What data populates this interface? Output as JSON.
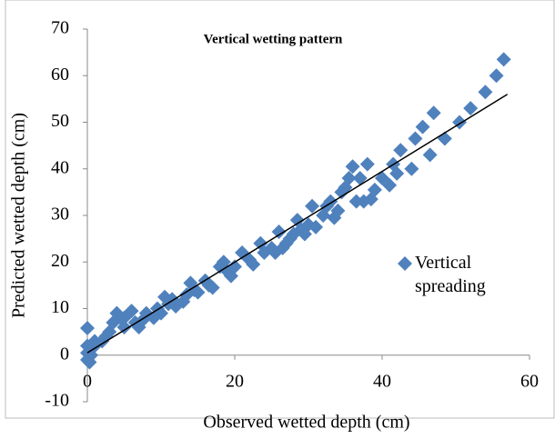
{
  "chart_data": {
    "type": "scatter",
    "title": "Vertical wetting pattern",
    "x_label": "Observed wetted depth (cm)",
    "y_label": "Predicted wetted depth (cm)",
    "xlim": [
      0,
      60
    ],
    "xticks": [
      0,
      20,
      40,
      60
    ],
    "ylim": [
      -10,
      70
    ],
    "yticks": [
      -10,
      0,
      10,
      20,
      30,
      40,
      50,
      60,
      70
    ],
    "series": [
      {
        "name": "Vertical spreading",
        "color": "#4f81bd",
        "x": [
          0,
          0,
          0,
          0,
          0.3,
          0.5,
          1,
          1,
          2,
          2.5,
          3,
          3.5,
          4,
          4.5,
          5,
          5,
          6,
          6.5,
          7,
          7.5,
          8,
          9,
          9.5,
          10,
          10.5,
          11,
          11.5,
          12,
          13,
          13.5,
          14,
          14.5,
          15,
          16,
          16.5,
          17,
          18,
          18.5,
          19,
          19.5,
          20,
          21,
          22,
          22.5,
          23.5,
          24,
          25,
          25.5,
          26,
          26.5,
          27,
          27.5,
          28,
          28.5,
          29,
          29.5,
          30,
          30.5,
          31,
          32,
          32.5,
          33,
          33.5,
          34,
          34.5,
          35,
          35.5,
          36,
          36.5,
          37,
          37.5,
          38,
          38.5,
          39,
          40,
          41,
          41.5,
          42,
          42.5,
          44,
          44.5,
          45.5,
          46.5,
          47,
          48.5,
          50.5,
          52,
          54,
          55.5,
          56.5
        ],
        "values": [
          5.8,
          2,
          0.5,
          -1,
          -1.5,
          0,
          2,
          3,
          3,
          4,
          5,
          7,
          9,
          8,
          6,
          8,
          9.5,
          7,
          6,
          7.5,
          9,
          8,
          10,
          9,
          12.5,
          11,
          12,
          10.5,
          11.5,
          13,
          15.5,
          14,
          13.5,
          16,
          15,
          14.5,
          19,
          20,
          18,
          17,
          19,
          22,
          20.5,
          19.5,
          24,
          22,
          23,
          22,
          26.5,
          23,
          24,
          25,
          26,
          29,
          27,
          26,
          28,
          32,
          27.5,
          30,
          32,
          33,
          29.5,
          31,
          35,
          36,
          38,
          40.5,
          33,
          38,
          33,
          41,
          33.5,
          35.5,
          38,
          36.5,
          41,
          39,
          44,
          40,
          46.5,
          49,
          43,
          52,
          46.5,
          50,
          53,
          56.5,
          60,
          63.5
        ]
      }
    ],
    "trendline": {
      "color": "#000000",
      "x": [
        0,
        57
      ],
      "values": [
        0.5,
        56
      ]
    }
  }
}
